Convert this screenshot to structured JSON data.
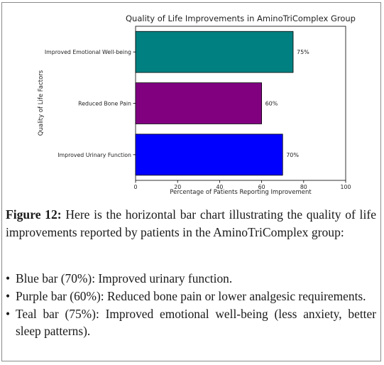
{
  "chart_data": {
    "type": "bar",
    "orientation": "horizontal",
    "title": "Quality of Life Improvements in AminoTriComplex Group",
    "xlabel": "Percentage of Patients Reporting Improvement",
    "ylabel": "Quality of Life Factors",
    "xlim": [
      0,
      100
    ],
    "xticks": [
      "0",
      "20",
      "40",
      "60",
      "80",
      "100"
    ],
    "grid": false,
    "bars": [
      {
        "category": "Improved Emotional Well-being",
        "value": 75,
        "label": "75%",
        "color": "#008080"
      },
      {
        "category": "Reduced Bone Pain",
        "value": 60,
        "label": "60%",
        "color": "#800080"
      },
      {
        "category": "Improved Urinary Function",
        "value": 70,
        "label": "70%",
        "color": "#0000ff"
      }
    ]
  },
  "caption": {
    "figure_label": "Figure 12:",
    "text": "Here is the horizontal bar chart illustrating the quality of life improvements reported by patients in the AminoTriComplex group:"
  },
  "bullets": [
    "Blue bar (70%): Improved urinary function.",
    "Purple bar (60%): Reduced bone pain or lower analgesic requirements.",
    "Teal bar (75%): Improved emotional well-being (less anxiety, better sleep patterns)."
  ]
}
